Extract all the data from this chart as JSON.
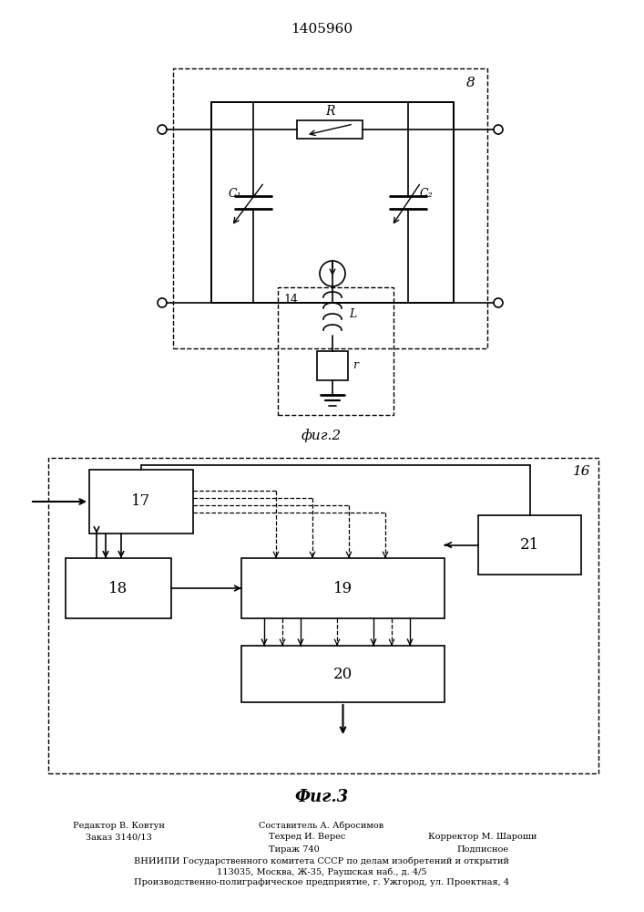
{
  "patent_number": "1405960",
  "fig2_label": "8",
  "fig2_caption": "фиг.2",
  "fig3_label": "16",
  "fig3_caption": "Фиг.3",
  "label14": "14",
  "bg_color": "#ffffff",
  "line_color": "#000000",
  "footer_left_1": "Редактор В. Ковтун",
  "footer_left_2": "Заказ 3140/13",
  "footer_center_1": "Составитель А. Абросимов",
  "footer_center_2": "Техред И. Верес",
  "footer_center_3": "Тираж 740",
  "footer_right_2": "Корректор М. Шароши",
  "footer_right_3": "Подписное",
  "footer_line4": "ВНИИПИ Государственного комитета СССР по делам изобретений и открытий",
  "footer_line5": "113035, Москва, Ж-35, Раушская наб., д. 4/5",
  "footer_line6": "Производственно-полиграфическое предприятие, г. Ужгород, ул. Проектная, 4"
}
